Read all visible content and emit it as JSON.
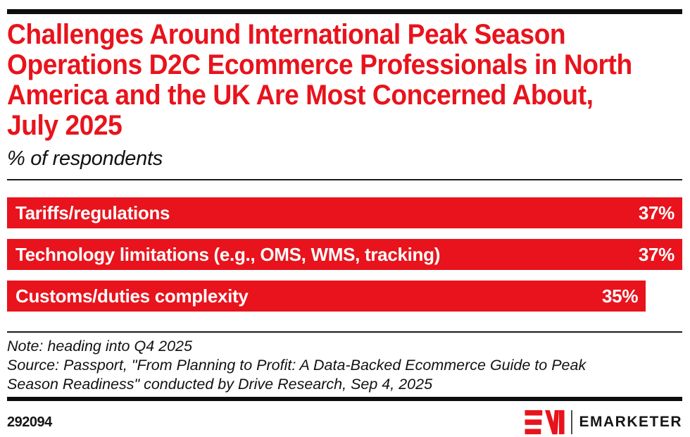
{
  "colors": {
    "red": "#e8131c",
    "black": "#0d0d0d"
  },
  "header": {
    "title": "Challenges Around International Peak Season Operations D2C Ecommerce Professionals in North America and the UK Are Most Concerned About, July 2025",
    "title_lines": [
      "Challenges Around International Peak Season",
      "Operations D2C Ecommerce Professionals in North",
      "America and the UK Are Most Concerned About,",
      "July 2025"
    ],
    "subtitle": "% of respondents"
  },
  "chart_data": {
    "type": "bar",
    "orientation": "horizontal",
    "title": "Challenges Around International Peak Season Operations D2C Ecommerce Professionals in North America and the UK Are Most Concerned About, July 2025",
    "subtitle": "% of respondents",
    "categories": [
      "Tariffs/regulations",
      "Technology limitations (e.g., OMS, WMS, tracking)",
      "Customs/duties complexity"
    ],
    "values": [
      37,
      37,
      35
    ],
    "value_labels": [
      "37%",
      "37%",
      "35%"
    ],
    "xlim": [
      0,
      37
    ],
    "bar_color": "#e8131c",
    "grid": false,
    "legend": "none"
  },
  "notes": {
    "note": "Note: heading into Q4 2025",
    "source": "Source: Passport, \"From Planning to Profit: A Data-Backed Ecommerce Guide to Peak Season Readiness\" conducted by Drive Research, Sep 4, 2025",
    "source_lines": [
      "Source: Passport, \"From Planning to Profit: A Data-Backed Ecommerce Guide to Peak",
      "Season Readiness\" conducted by Drive Research, Sep 4, 2025"
    ]
  },
  "footer": {
    "chart_id": "292094",
    "brand_wordmark": "EMARKETER"
  }
}
